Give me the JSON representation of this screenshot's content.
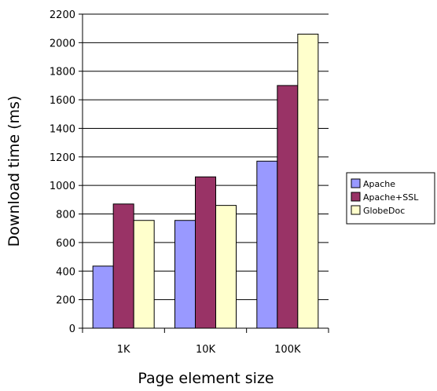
{
  "chart_data": {
    "type": "bar",
    "categories": [
      "1K",
      "10K",
      "100K"
    ],
    "series": [
      {
        "name": "Apache",
        "values": [
          435,
          755,
          1170
        ],
        "color": "#9999ff"
      },
      {
        "name": "Apache+SSL",
        "values": [
          870,
          1060,
          1700
        ],
        "color": "#993366"
      },
      {
        "name": "GlobeDoc",
        "values": [
          755,
          860,
          2060
        ],
        "color": "#ffffcc"
      }
    ],
    "xlabel": "Page element size",
    "ylabel": "Download time (ms)",
    "ylim": [
      0,
      2200
    ],
    "yticks": [
      0,
      200,
      400,
      600,
      800,
      1000,
      1200,
      1400,
      1600,
      1800,
      2000,
      2200
    ],
    "grid": true,
    "legend_position": "right"
  }
}
